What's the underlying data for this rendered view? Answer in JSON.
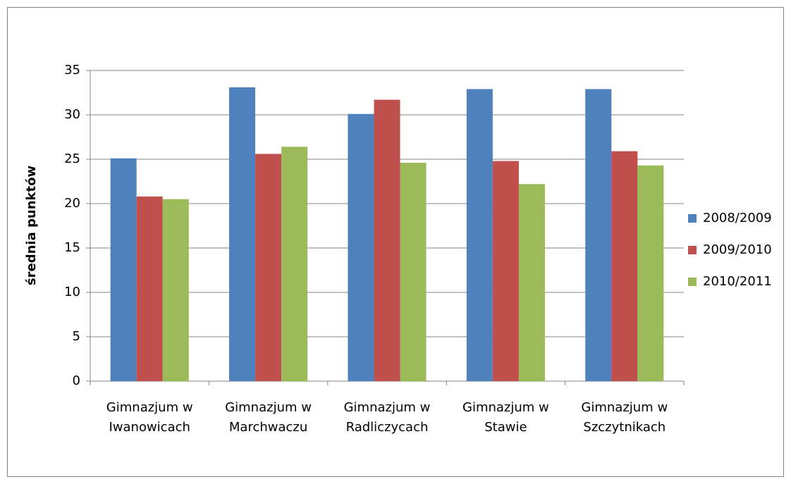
{
  "chart_data": {
    "type": "bar",
    "categories": [
      "Gimnazjum w Iwanowicach",
      "Gimnazjum w Marchwaczu",
      "Gimnazjum w Radliczycach",
      "Gimnazjum w Stawie",
      "Gimnazjum w Szczytnikach"
    ],
    "series": [
      {
        "name": "2008/2009",
        "color": "#4f81bd",
        "values": [
          25.1,
          33.1,
          30.1,
          32.9,
          32.9
        ]
      },
      {
        "name": "2009/2010",
        "color": "#c0504d",
        "values": [
          20.8,
          25.6,
          31.7,
          24.8,
          25.9
        ]
      },
      {
        "name": "2010/2011",
        "color": "#9bbb59",
        "values": [
          20.5,
          26.4,
          24.6,
          22.2,
          24.3
        ]
      }
    ],
    "y_label": "średnia punktów",
    "ylim": [
      0,
      35
    ],
    "yticks": [
      0,
      5,
      10,
      15,
      20,
      25,
      30,
      35
    ],
    "grid": true,
    "legend": "right"
  }
}
